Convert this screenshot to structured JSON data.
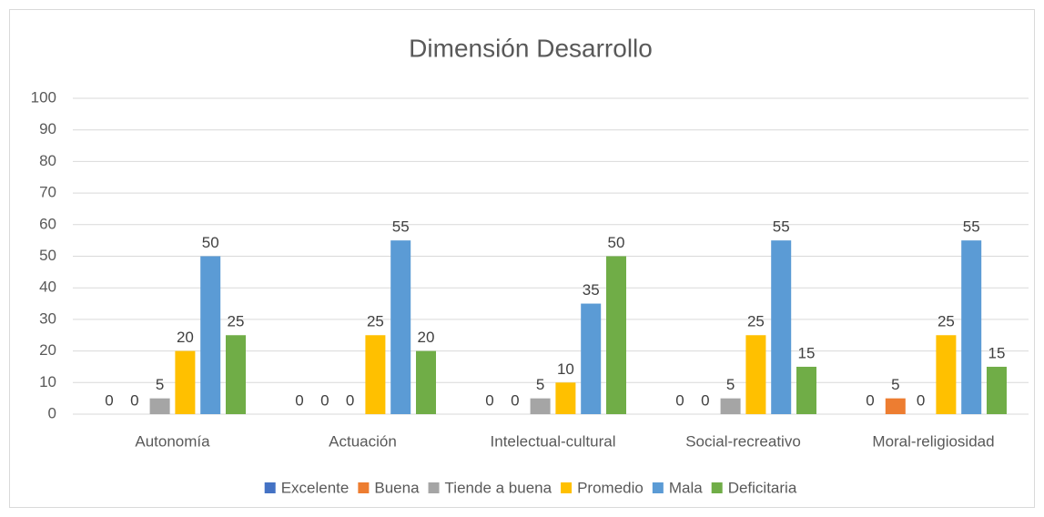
{
  "chart_data": {
    "type": "bar",
    "title": "Dimensión Desarrollo",
    "categories": [
      "Autonomía",
      "Actuación",
      "Intelectual-cultural",
      "Social-recreativo",
      "Moral-religiosidad"
    ],
    "series": [
      {
        "name": "Excelente",
        "color": "#4472c4",
        "values": [
          0,
          0,
          0,
          0,
          0
        ]
      },
      {
        "name": "Buena",
        "color": "#ed7d31",
        "values": [
          0,
          0,
          0,
          0,
          5
        ]
      },
      {
        "name": "Tiende a buena",
        "color": "#a5a5a5",
        "values": [
          5,
          0,
          5,
          5,
          0
        ]
      },
      {
        "name": "Promedio",
        "color": "#ffc000",
        "values": [
          20,
          25,
          10,
          25,
          25
        ]
      },
      {
        "name": "Mala",
        "color": "#5b9bd5",
        "values": [
          50,
          55,
          35,
          55,
          55
        ]
      },
      {
        "name": "Deficitaria",
        "color": "#70ad47",
        "values": [
          25,
          20,
          50,
          15,
          15
        ]
      }
    ],
    "ylim": [
      0,
      100
    ],
    "yticks": [
      0,
      10,
      20,
      30,
      40,
      50,
      60,
      70,
      80,
      90,
      100
    ],
    "grid": true,
    "legend": "bottom"
  }
}
